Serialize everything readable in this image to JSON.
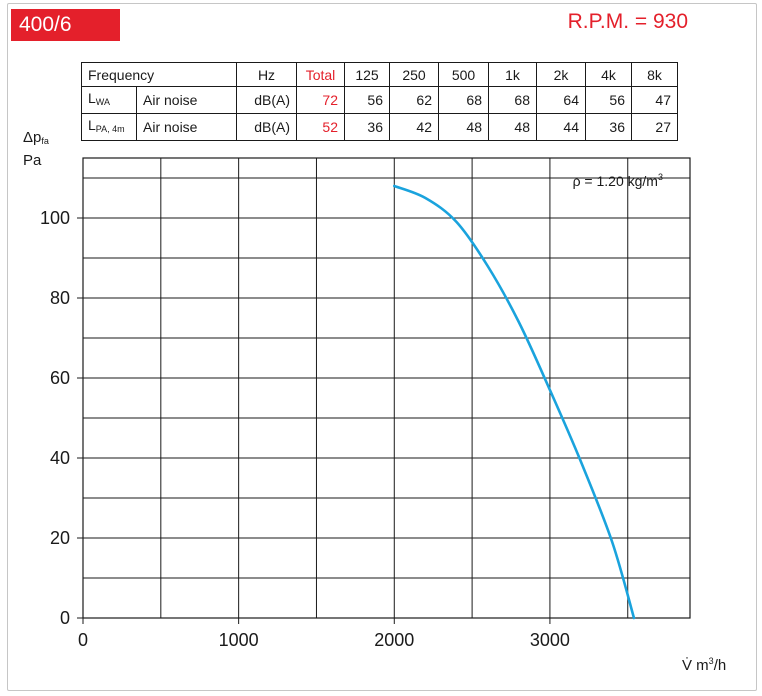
{
  "header": {
    "model": "400/6",
    "rpm": "R.P.M. = 930"
  },
  "noise_table": {
    "headers": [
      "Frequency",
      "Hz",
      "Total",
      "125",
      "250",
      "500",
      "1k",
      "2k",
      "4k",
      "8k"
    ],
    "rows": [
      {
        "sym": "L",
        "sub": "WA",
        "desc": "Air noise",
        "unit": "dB(A)",
        "values": [
          "72",
          "56",
          "62",
          "68",
          "68",
          "64",
          "56",
          "47"
        ]
      },
      {
        "sym": "L",
        "sub": "PA, 4m",
        "desc": "Air noise",
        "unit": "dB(A)",
        "values": [
          "52",
          "36",
          "42",
          "48",
          "48",
          "44",
          "36",
          "27"
        ]
      }
    ]
  },
  "colors": {
    "accent": "#e4202b",
    "curve": "#1aa3dd",
    "grid": "#1a1a1a"
  },
  "chart_data": {
    "type": "line",
    "xlabel": {
      "main": "V̇ m",
      "sup": "3",
      "tail": "/h"
    },
    "ylabel": {
      "main": "Δp",
      "sub": "fa",
      "unit": "Pa"
    },
    "annotation": {
      "main": "ρ = 1.20 kg/m",
      "sup": "3"
    },
    "xlim": [
      0,
      3900
    ],
    "ylim": [
      0,
      115
    ],
    "x_grid_step": 500,
    "y_grid_step": 10,
    "xticks": [
      0,
      1000,
      2000,
      3000
    ],
    "yticks": [
      0,
      20,
      40,
      60,
      80,
      100
    ],
    "grid": true,
    "series": [
      {
        "x": [
          2000,
          2200,
          2400,
          2600,
          2800,
          3000,
          3200,
          3400,
          3540
        ],
        "y": [
          108,
          105,
          99,
          88,
          74,
          57,
          39,
          19,
          0
        ]
      }
    ]
  }
}
